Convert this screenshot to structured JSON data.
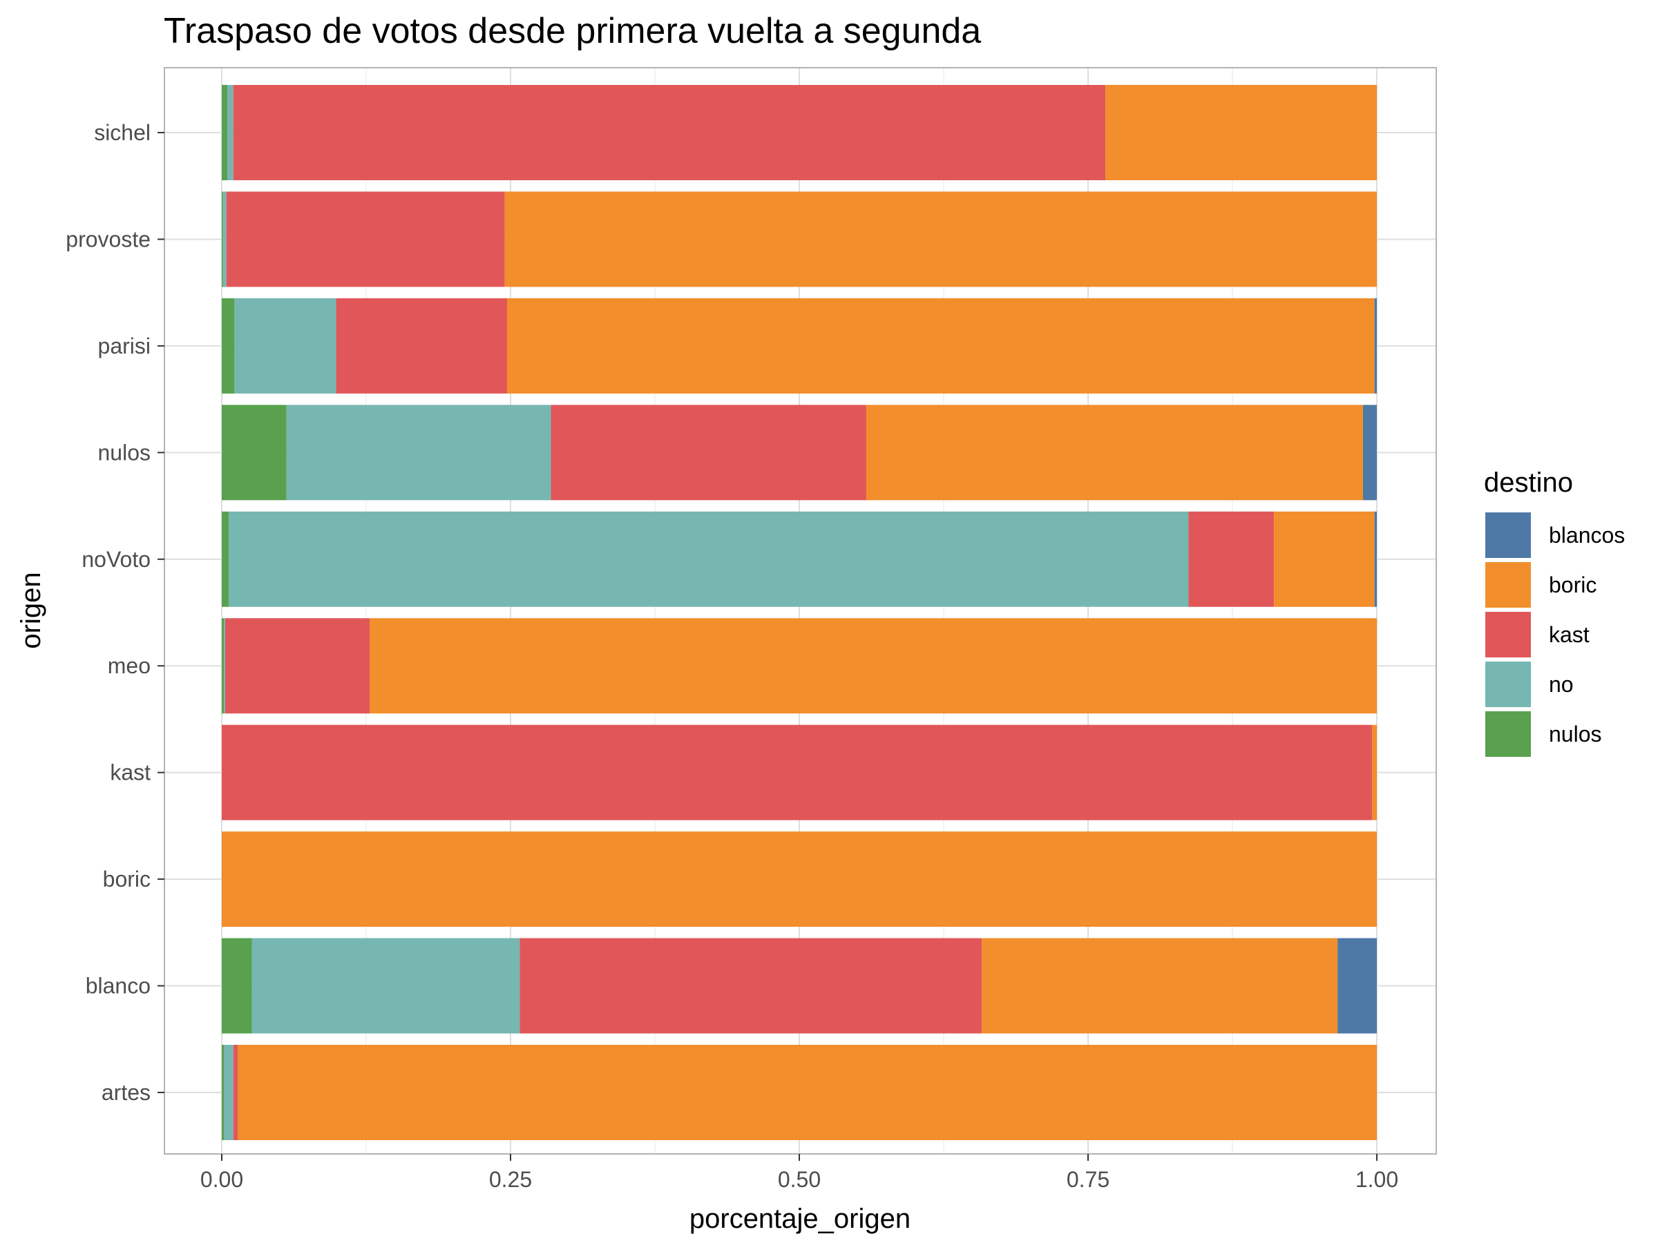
{
  "chart_data": {
    "type": "bar",
    "orientation": "horizontal",
    "stacked": true,
    "title": "Traspaso de votos desde primera vuelta a segunda",
    "xlabel": "porcentaje_origen",
    "ylabel": "origen",
    "xlim": [
      0,
      1
    ],
    "x_ticks": [
      "0.00",
      "0.25",
      "0.50",
      "0.75",
      "1.00"
    ],
    "x_tick_values": [
      0,
      0.25,
      0.5,
      0.75,
      1.0
    ],
    "grid": true,
    "legend_position": "right",
    "legend": {
      "title": "destino",
      "entries": [
        "blancos",
        "boric",
        "kast",
        "no",
        "nulos"
      ]
    },
    "colors": {
      "blancos": "#4e79a7",
      "boric": "#f28e2b",
      "kast": "#e15759",
      "no": "#76b7b2",
      "nulos": "#59a14f"
    },
    "stack_order": [
      "nulos",
      "no",
      "kast",
      "boric",
      "blancos"
    ],
    "categories": [
      "artes",
      "blanco",
      "boric",
      "kast",
      "meo",
      "noVoto",
      "nulos",
      "parisi",
      "provoste",
      "sichel"
    ],
    "series": [
      {
        "name": "nulos",
        "values": [
          0.002,
          0.026,
          0.0,
          0.0,
          0.002,
          0.006,
          0.056,
          0.011,
          0.001,
          0.005
        ]
      },
      {
        "name": "no",
        "values": [
          0.008,
          0.232,
          0.0,
          0.0,
          0.001,
          0.831,
          0.229,
          0.088,
          0.003,
          0.005
        ]
      },
      {
        "name": "kast",
        "values": [
          0.004,
          0.4,
          0.0,
          0.996,
          0.125,
          0.074,
          0.273,
          0.148,
          0.241,
          0.755
        ]
      },
      {
        "name": "boric",
        "values": [
          0.986,
          0.308,
          1.0,
          0.004,
          0.872,
          0.087,
          0.43,
          0.751,
          0.755,
          0.235
        ]
      },
      {
        "name": "blancos",
        "values": [
          0.0,
          0.034,
          0.0,
          0.0,
          0.0,
          0.002,
          0.012,
          0.002,
          0.0,
          0.0
        ]
      }
    ]
  }
}
